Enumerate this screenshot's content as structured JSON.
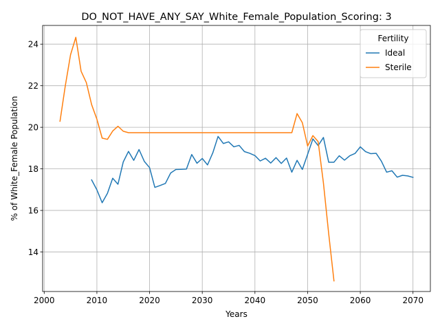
{
  "chart_data": {
    "type": "line",
    "title": "DO_NOT_HAVE_ANY_SAY_White_Female_Population_Scoring: 3",
    "xlabel": "Years",
    "ylabel": "% of White_Female Population",
    "xlim": [
      1999.7,
      2073.3
    ],
    "ylim": [
      12.1,
      24.9
    ],
    "xticks": [
      2000,
      2010,
      2020,
      2030,
      2040,
      2050,
      2060,
      2070
    ],
    "yticks": [
      14,
      16,
      18,
      20,
      22,
      24
    ],
    "grid": true,
    "legend": {
      "title": "Fertility",
      "placement": "top-right"
    },
    "colors": {
      "Ideal": "#1f77b4",
      "Sterile": "#ff7f0e"
    },
    "series": [
      {
        "name": "Ideal",
        "x": [
          2009,
          2010,
          2011,
          2012,
          2013,
          2014,
          2015,
          2016,
          2017,
          2018,
          2019,
          2020,
          2021,
          2022,
          2023,
          2024,
          2025,
          2026,
          2027,
          2028,
          2029,
          2030,
          2031,
          2032,
          2033,
          2034,
          2035,
          2036,
          2037,
          2038,
          2039,
          2040,
          2041,
          2042,
          2043,
          2044,
          2045,
          2046,
          2047,
          2048,
          2049,
          2050,
          2051,
          2052,
          2053,
          2054,
          2055,
          2056,
          2057,
          2058,
          2059,
          2060,
          2061,
          2062,
          2063,
          2064,
          2065,
          2066,
          2067,
          2068,
          2069,
          2070
        ],
        "y": [
          17.47,
          16.99,
          16.37,
          16.82,
          17.55,
          17.26,
          18.33,
          18.84,
          18.41,
          18.93,
          18.36,
          18.06,
          17.11,
          17.2,
          17.3,
          17.8,
          17.97,
          17.98,
          17.99,
          18.69,
          18.27,
          18.5,
          18.19,
          18.77,
          19.56,
          19.22,
          19.3,
          19.06,
          19.13,
          18.83,
          18.75,
          18.64,
          18.38,
          18.51,
          18.28,
          18.54,
          18.26,
          18.52,
          17.84,
          18.41,
          17.97,
          18.7,
          19.44,
          19.12,
          19.51,
          18.32,
          18.32,
          18.63,
          18.42,
          18.63,
          18.74,
          19.06,
          18.83,
          18.73,
          18.75,
          18.37,
          17.84,
          17.91,
          17.6,
          17.69,
          17.66,
          17.59
        ]
      },
      {
        "name": "Sterile",
        "x": [
          2003,
          2004,
          2005,
          2006,
          2007,
          2008,
          2009,
          2010,
          2011,
          2012,
          2013,
          2014,
          2015,
          2016,
          2017,
          2018,
          2019,
          2020,
          2021,
          2022,
          2023,
          2024,
          2025,
          2026,
          2027,
          2028,
          2029,
          2030,
          2031,
          2032,
          2033,
          2034,
          2035,
          2036,
          2037,
          2038,
          2039,
          2040,
          2041,
          2042,
          2043,
          2044,
          2045,
          2046,
          2047,
          2048,
          2049,
          2050,
          2051,
          2052,
          2053,
          2054,
          2055
        ],
        "y": [
          20.29,
          21.99,
          23.49,
          24.33,
          22.7,
          22.15,
          21.09,
          20.39,
          19.48,
          19.42,
          19.82,
          20.05,
          19.81,
          19.74,
          19.74,
          19.74,
          19.74,
          19.74,
          19.74,
          19.74,
          19.74,
          19.74,
          19.74,
          19.74,
          19.74,
          19.74,
          19.74,
          19.74,
          19.74,
          19.74,
          19.74,
          19.74,
          19.74,
          19.74,
          19.74,
          19.74,
          19.74,
          19.74,
          19.74,
          19.74,
          19.74,
          19.74,
          19.74,
          19.74,
          19.74,
          20.66,
          20.22,
          19.1,
          19.6,
          19.31,
          17.32,
          14.88,
          12.61
        ]
      }
    ]
  }
}
